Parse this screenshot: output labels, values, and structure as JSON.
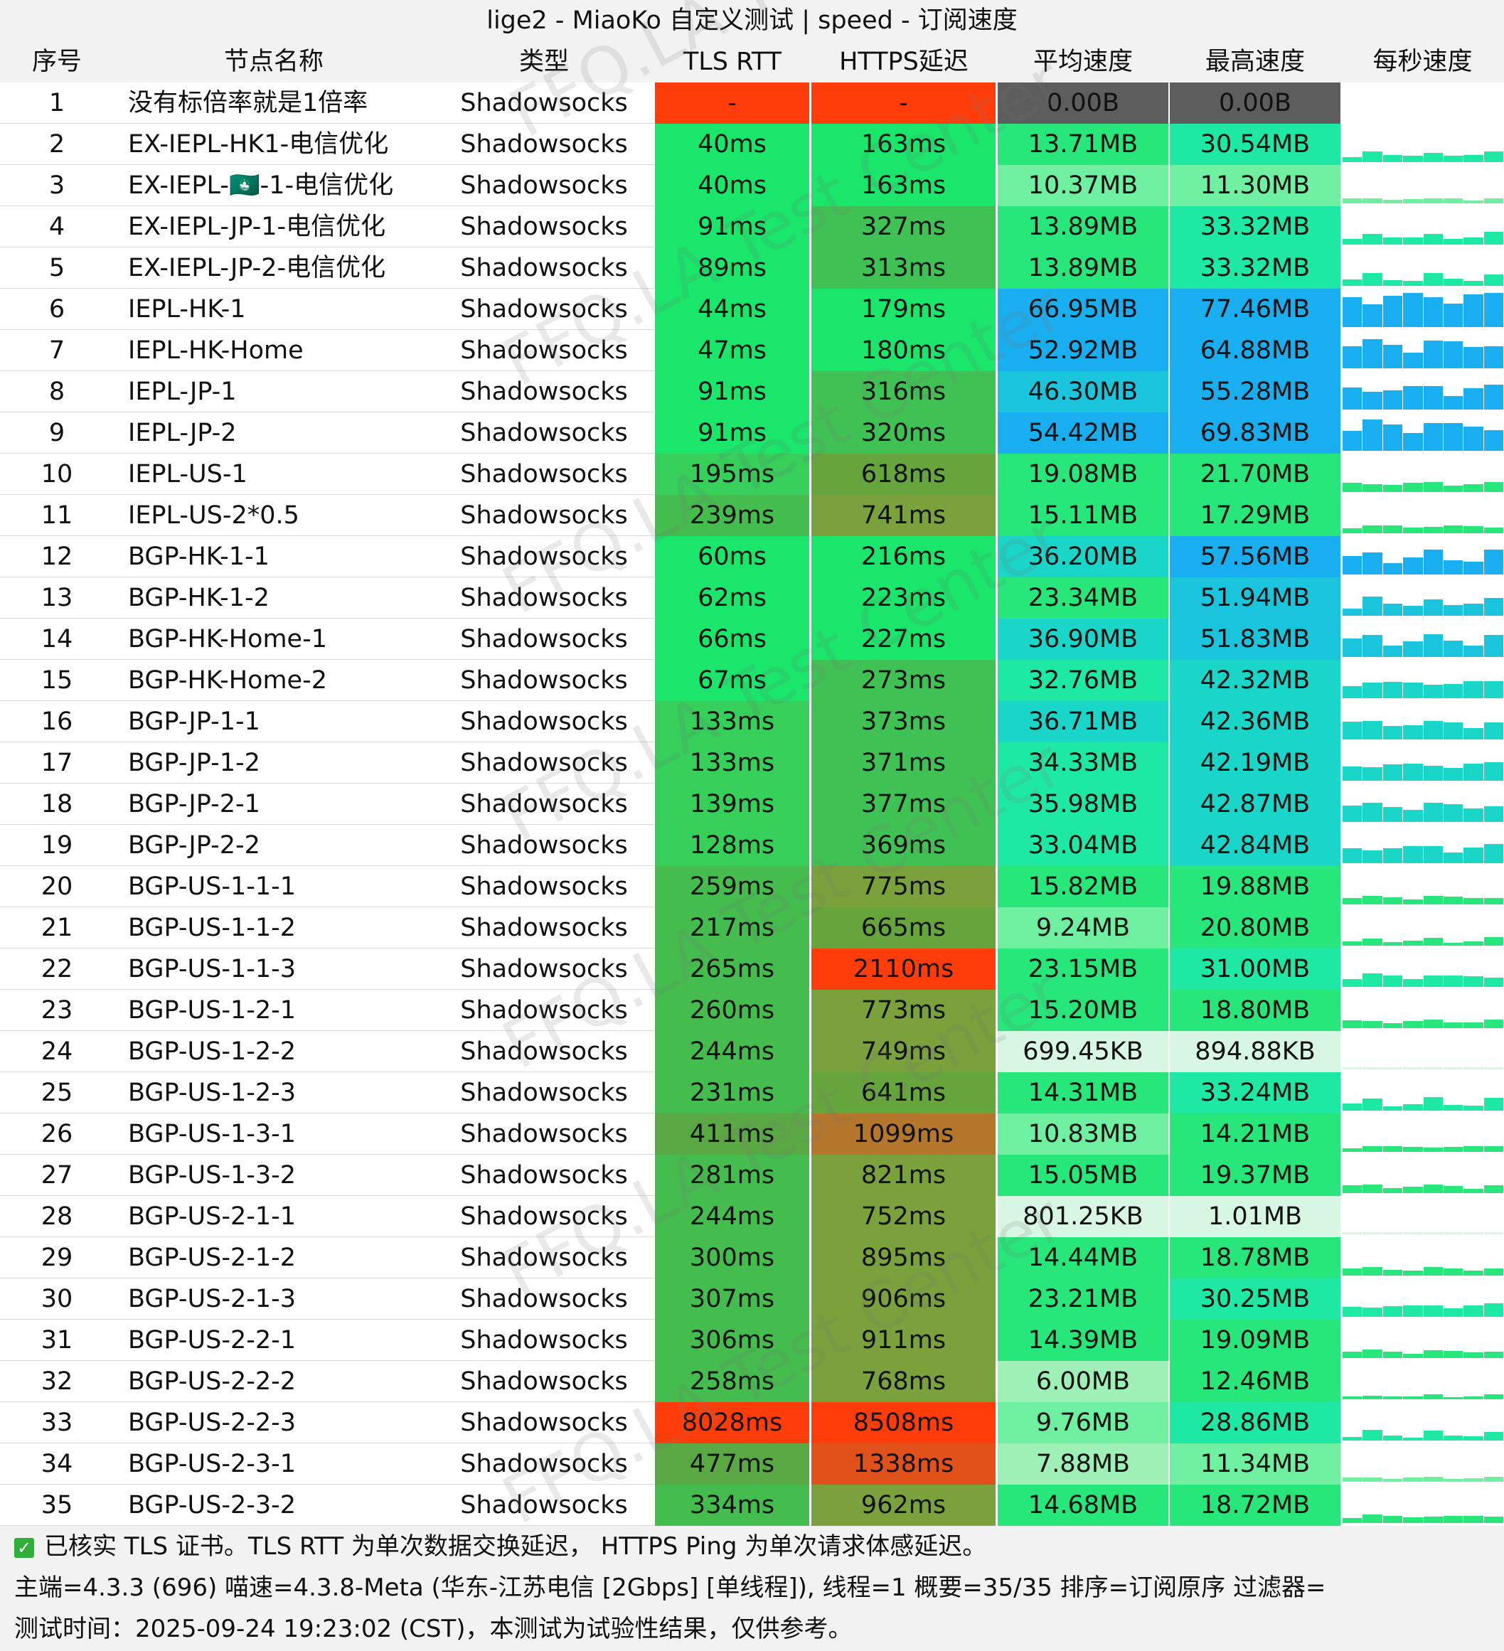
{
  "title": "lige2 - MiaoKo 自定义测试 | speed - 订阅速度",
  "columns": [
    "序号",
    "节点名称",
    "类型",
    "TLS RTT",
    "HTTPS延迟",
    "平均速度",
    "最高速度",
    "每秒速度"
  ],
  "watermark": "FFQ.LA Test Center",
  "colors": {
    "header_bg": "#f2f2f2",
    "green": "#19e66a",
    "olive": "#7aa13b",
    "brown": "#b4762a",
    "red": "#ff3d0a",
    "gray": "#5d5d5d",
    "blue": "#18aef0"
  },
  "rows": [
    {
      "idx": "1",
      "name": "没有标倍率就是1倍率",
      "type": "Shadowsocks",
      "tls": "-",
      "https": "-",
      "avg": "0.00B",
      "max": "0.00B"
    },
    {
      "idx": "2",
      "name": "EX-IEPL-HK1-电信优化",
      "type": "Shadowsocks",
      "tls": "40ms",
      "https": "163ms",
      "avg": "13.71MB",
      "max": "30.54MB"
    },
    {
      "idx": "3",
      "name": "EX-IEPL-🇲🇴-1-电信优化",
      "type": "Shadowsocks",
      "tls": "40ms",
      "https": "163ms",
      "avg": "10.37MB",
      "max": "11.30MB"
    },
    {
      "idx": "4",
      "name": "EX-IEPL-JP-1-电信优化",
      "type": "Shadowsocks",
      "tls": "91ms",
      "https": "327ms",
      "avg": "13.89MB",
      "max": "33.32MB"
    },
    {
      "idx": "5",
      "name": "EX-IEPL-JP-2-电信优化",
      "type": "Shadowsocks",
      "tls": "89ms",
      "https": "313ms",
      "avg": "13.89MB",
      "max": "33.32MB"
    },
    {
      "idx": "6",
      "name": "IEPL-HK-1",
      "type": "Shadowsocks",
      "tls": "44ms",
      "https": "179ms",
      "avg": "66.95MB",
      "max": "77.46MB"
    },
    {
      "idx": "7",
      "name": "IEPL-HK-Home",
      "type": "Shadowsocks",
      "tls": "47ms",
      "https": "180ms",
      "avg": "52.92MB",
      "max": "64.88MB"
    },
    {
      "idx": "8",
      "name": "IEPL-JP-1",
      "type": "Shadowsocks",
      "tls": "91ms",
      "https": "316ms",
      "avg": "46.30MB",
      "max": "55.28MB"
    },
    {
      "idx": "9",
      "name": "IEPL-JP-2",
      "type": "Shadowsocks",
      "tls": "91ms",
      "https": "320ms",
      "avg": "54.42MB",
      "max": "69.83MB"
    },
    {
      "idx": "10",
      "name": "IEPL-US-1",
      "type": "Shadowsocks",
      "tls": "195ms",
      "https": "618ms",
      "avg": "19.08MB",
      "max": "21.70MB"
    },
    {
      "idx": "11",
      "name": "IEPL-US-2*0.5",
      "type": "Shadowsocks",
      "tls": "239ms",
      "https": "741ms",
      "avg": "15.11MB",
      "max": "17.29MB"
    },
    {
      "idx": "12",
      "name": "BGP-HK-1-1",
      "type": "Shadowsocks",
      "tls": "60ms",
      "https": "216ms",
      "avg": "36.20MB",
      "max": "57.56MB"
    },
    {
      "idx": "13",
      "name": "BGP-HK-1-2",
      "type": "Shadowsocks",
      "tls": "62ms",
      "https": "223ms",
      "avg": "23.34MB",
      "max": "51.94MB"
    },
    {
      "idx": "14",
      "name": "BGP-HK-Home-1",
      "type": "Shadowsocks",
      "tls": "66ms",
      "https": "227ms",
      "avg": "36.90MB",
      "max": "51.83MB"
    },
    {
      "idx": "15",
      "name": "BGP-HK-Home-2",
      "type": "Shadowsocks",
      "tls": "67ms",
      "https": "273ms",
      "avg": "32.76MB",
      "max": "42.32MB"
    },
    {
      "idx": "16",
      "name": "BGP-JP-1-1",
      "type": "Shadowsocks",
      "tls": "133ms",
      "https": "373ms",
      "avg": "36.71MB",
      "max": "42.36MB"
    },
    {
      "idx": "17",
      "name": "BGP-JP-1-2",
      "type": "Shadowsocks",
      "tls": "133ms",
      "https": "371ms",
      "avg": "34.33MB",
      "max": "42.19MB"
    },
    {
      "idx": "18",
      "name": "BGP-JP-2-1",
      "type": "Shadowsocks",
      "tls": "139ms",
      "https": "377ms",
      "avg": "35.98MB",
      "max": "42.87MB"
    },
    {
      "idx": "19",
      "name": "BGP-JP-2-2",
      "type": "Shadowsocks",
      "tls": "128ms",
      "https": "369ms",
      "avg": "33.04MB",
      "max": "42.84MB"
    },
    {
      "idx": "20",
      "name": "BGP-US-1-1-1",
      "type": "Shadowsocks",
      "tls": "259ms",
      "https": "775ms",
      "avg": "15.82MB",
      "max": "19.88MB"
    },
    {
      "idx": "21",
      "name": "BGP-US-1-1-2",
      "type": "Shadowsocks",
      "tls": "217ms",
      "https": "665ms",
      "avg": "9.24MB",
      "max": "20.80MB"
    },
    {
      "idx": "22",
      "name": "BGP-US-1-1-3",
      "type": "Shadowsocks",
      "tls": "265ms",
      "https": "2110ms",
      "avg": "23.15MB",
      "max": "31.00MB"
    },
    {
      "idx": "23",
      "name": "BGP-US-1-2-1",
      "type": "Shadowsocks",
      "tls": "260ms",
      "https": "773ms",
      "avg": "15.20MB",
      "max": "18.80MB"
    },
    {
      "idx": "24",
      "name": "BGP-US-1-2-2",
      "type": "Shadowsocks",
      "tls": "244ms",
      "https": "749ms",
      "avg": "699.45KB",
      "max": "894.88KB"
    },
    {
      "idx": "25",
      "name": "BGP-US-1-2-3",
      "type": "Shadowsocks",
      "tls": "231ms",
      "https": "641ms",
      "avg": "14.31MB",
      "max": "33.24MB"
    },
    {
      "idx": "26",
      "name": "BGP-US-1-3-1",
      "type": "Shadowsocks",
      "tls": "411ms",
      "https": "1099ms",
      "avg": "10.83MB",
      "max": "14.21MB"
    },
    {
      "idx": "27",
      "name": "BGP-US-1-3-2",
      "type": "Shadowsocks",
      "tls": "281ms",
      "https": "821ms",
      "avg": "15.05MB",
      "max": "19.37MB"
    },
    {
      "idx": "28",
      "name": "BGP-US-2-1-1",
      "type": "Shadowsocks",
      "tls": "244ms",
      "https": "752ms",
      "avg": "801.25KB",
      "max": "1.01MB"
    },
    {
      "idx": "29",
      "name": "BGP-US-2-1-2",
      "type": "Shadowsocks",
      "tls": "300ms",
      "https": "895ms",
      "avg": "14.44MB",
      "max": "18.78MB"
    },
    {
      "idx": "30",
      "name": "BGP-US-2-1-3",
      "type": "Shadowsocks",
      "tls": "307ms",
      "https": "906ms",
      "avg": "23.21MB",
      "max": "30.25MB"
    },
    {
      "idx": "31",
      "name": "BGP-US-2-2-1",
      "type": "Shadowsocks",
      "tls": "306ms",
      "https": "911ms",
      "avg": "14.39MB",
      "max": "19.09MB"
    },
    {
      "idx": "32",
      "name": "BGP-US-2-2-2",
      "type": "Shadowsocks",
      "tls": "258ms",
      "https": "768ms",
      "avg": "6.00MB",
      "max": "12.46MB"
    },
    {
      "idx": "33",
      "name": "BGP-US-2-2-3",
      "type": "Shadowsocks",
      "tls": "8028ms",
      "https": "8508ms",
      "avg": "9.76MB",
      "max": "28.86MB"
    },
    {
      "idx": "34",
      "name": "BGP-US-2-3-1",
      "type": "Shadowsocks",
      "tls": "477ms",
      "https": "1338ms",
      "avg": "7.88MB",
      "max": "11.34MB"
    },
    {
      "idx": "35",
      "name": "BGP-US-2-3-2",
      "type": "Shadowsocks",
      "tls": "334ms",
      "https": "962ms",
      "avg": "14.68MB",
      "max": "18.72MB"
    }
  ],
  "footer": {
    "line1": "已核实 TLS 证书。TLS RTT 为单次数据交换延迟， HTTPS Ping 为单次请求体感延迟。",
    "line2": "主端=4.3.3 (696) 喵速=4.3.8-Meta (华东-江苏电信 [2Gbps] [单线程]), 线程=1 概要=35/35 排序=订阅原序 过滤器=",
    "line3": "测试时间：2025-09-24 19:23:02 (CST)，本测试为试验性结果，仅供参考。"
  }
}
